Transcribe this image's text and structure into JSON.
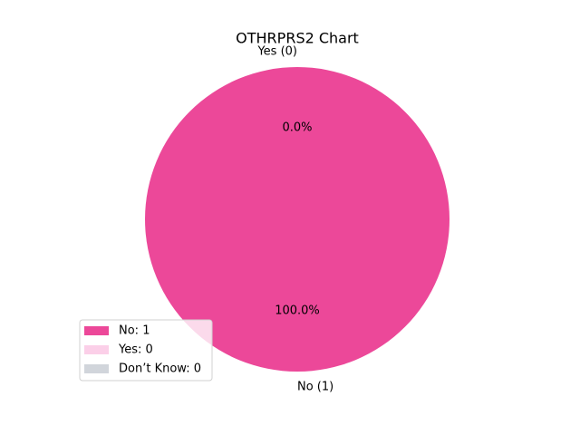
{
  "chart_data": {
    "type": "pie",
    "title": "OTHRPRS2 Chart",
    "categories": [
      "No",
      "Yes",
      "Don’t Know"
    ],
    "values": [
      1,
      0,
      0
    ],
    "colors": [
      "#ec4899",
      "#fbcfe8",
      "#d1d5db"
    ],
    "slices": [
      {
        "label": "No (1)",
        "percent": 100,
        "percent_label": "100.0%"
      },
      {
        "label": "Yes (0)",
        "percent": 0,
        "percent_label": "0.0%"
      }
    ],
    "legend_labels": [
      "No: 1",
      "Yes: 0",
      "Don’t Know: 0"
    ],
    "legend": "lower left"
  }
}
